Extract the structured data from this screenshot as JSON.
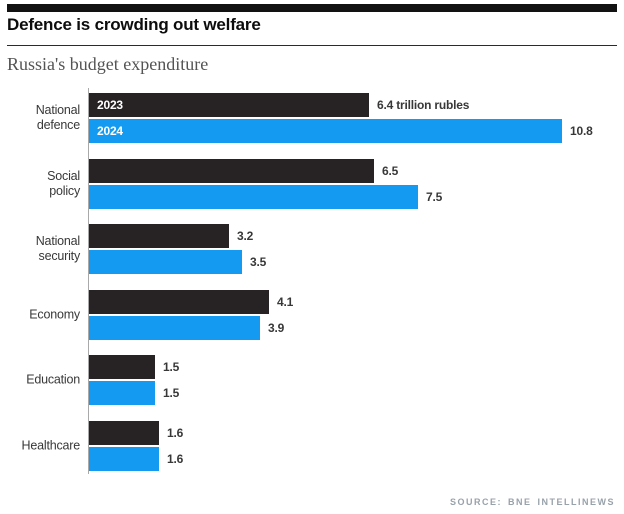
{
  "header": {
    "title": "Defence is crowding out welfare",
    "subtitle": "Russia's budget expenditure"
  },
  "footer": {
    "source": "SOURCE: BNE INTELLINEWS"
  },
  "chart_data": {
    "type": "bar",
    "orientation": "horizontal",
    "title": "Defence is crowding out welfare",
    "subtitle": "Russia's budget expenditure",
    "unit": "trillion rubles",
    "xlim": [
      0,
      10.8
    ],
    "grid": false,
    "legend_position": "series names printed inside first pair of bars",
    "categories": [
      "National defence",
      "Social policy",
      "National security",
      "Economy",
      "Education",
      "Healthcare"
    ],
    "category_label_lines": [
      [
        "National",
        "defence"
      ],
      [
        "Social",
        "policy"
      ],
      [
        "National",
        "security"
      ],
      [
        "Economy"
      ],
      [
        "Education"
      ],
      [
        "Healthcare"
      ]
    ],
    "series": [
      {
        "name": "2023",
        "color": "#272324",
        "label_text_color": "#ffffff",
        "values": [
          6.4,
          6.5,
          3.2,
          4.1,
          1.5,
          1.6
        ],
        "value_labels": [
          "6.4 trillion rubles",
          "6.5",
          "3.2",
          "4.1",
          "1.5",
          "1.6"
        ]
      },
      {
        "name": "2024",
        "color": "#149bf1",
        "label_text_color": "#ffffff",
        "values": [
          10.8,
          7.5,
          3.5,
          3.9,
          1.5,
          1.6
        ],
        "value_labels": [
          "10.8",
          "7.5",
          "3.5",
          "3.9",
          "1.5",
          "1.6"
        ]
      }
    ],
    "axis_color": "#a9a9a9"
  }
}
